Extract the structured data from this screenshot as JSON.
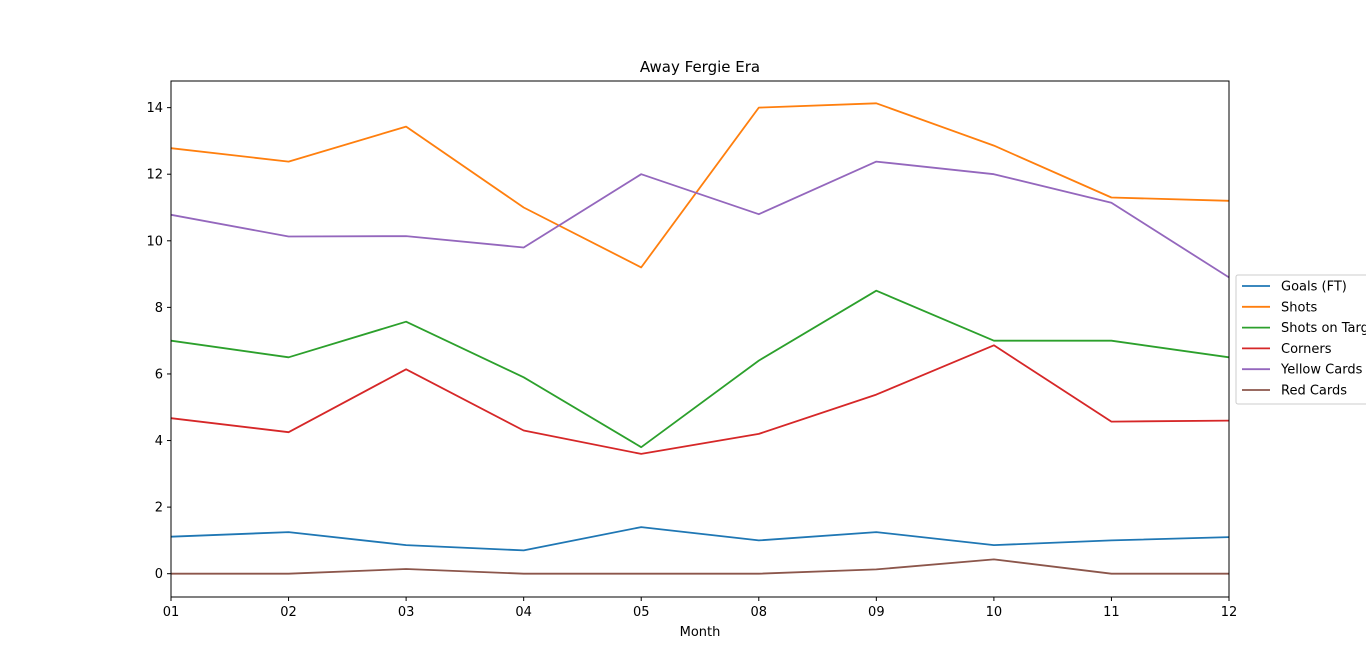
{
  "chart_data": {
    "type": "line",
    "title": "Away Fergie Era",
    "xlabel": "Month",
    "ylabel": "",
    "categories": [
      "01",
      "02",
      "03",
      "04",
      "05",
      "08",
      "09",
      "10",
      "11",
      "12"
    ],
    "ylim": [
      -0.7,
      14.8
    ],
    "yticks": [
      0,
      2,
      4,
      6,
      8,
      10,
      12,
      14
    ],
    "grid": false,
    "legend_position": "center-right",
    "series": [
      {
        "name": "Goals (FT)",
        "color": "#1f77b4",
        "values": [
          1.11,
          1.25,
          0.86,
          0.7,
          1.4,
          1.0,
          1.25,
          0.86,
          1.0,
          1.1
        ]
      },
      {
        "name": "Shots",
        "color": "#ff7f0e",
        "values": [
          12.78,
          12.38,
          13.43,
          11.0,
          9.2,
          14.0,
          14.13,
          12.86,
          11.3,
          11.2
        ]
      },
      {
        "name": "Shots on Target",
        "color": "#2ca02c",
        "values": [
          7.0,
          6.5,
          7.57,
          5.9,
          3.8,
          6.4,
          8.5,
          7.0,
          7.0,
          6.5
        ]
      },
      {
        "name": "Corners",
        "color": "#d62728",
        "values": [
          4.67,
          4.25,
          6.14,
          4.3,
          3.6,
          4.2,
          5.38,
          6.86,
          4.57,
          4.6
        ]
      },
      {
        "name": "Yellow Cards",
        "color": "#9467bd",
        "values": [
          10.78,
          10.13,
          10.14,
          9.8,
          12.0,
          10.8,
          12.38,
          12.0,
          11.14,
          8.9
        ]
      },
      {
        "name": "Red Cards",
        "color": "#8c564b",
        "values": [
          0.0,
          0.0,
          0.14,
          0.0,
          0.0,
          0.0,
          0.13,
          0.43,
          0.0,
          0.0
        ]
      }
    ]
  }
}
